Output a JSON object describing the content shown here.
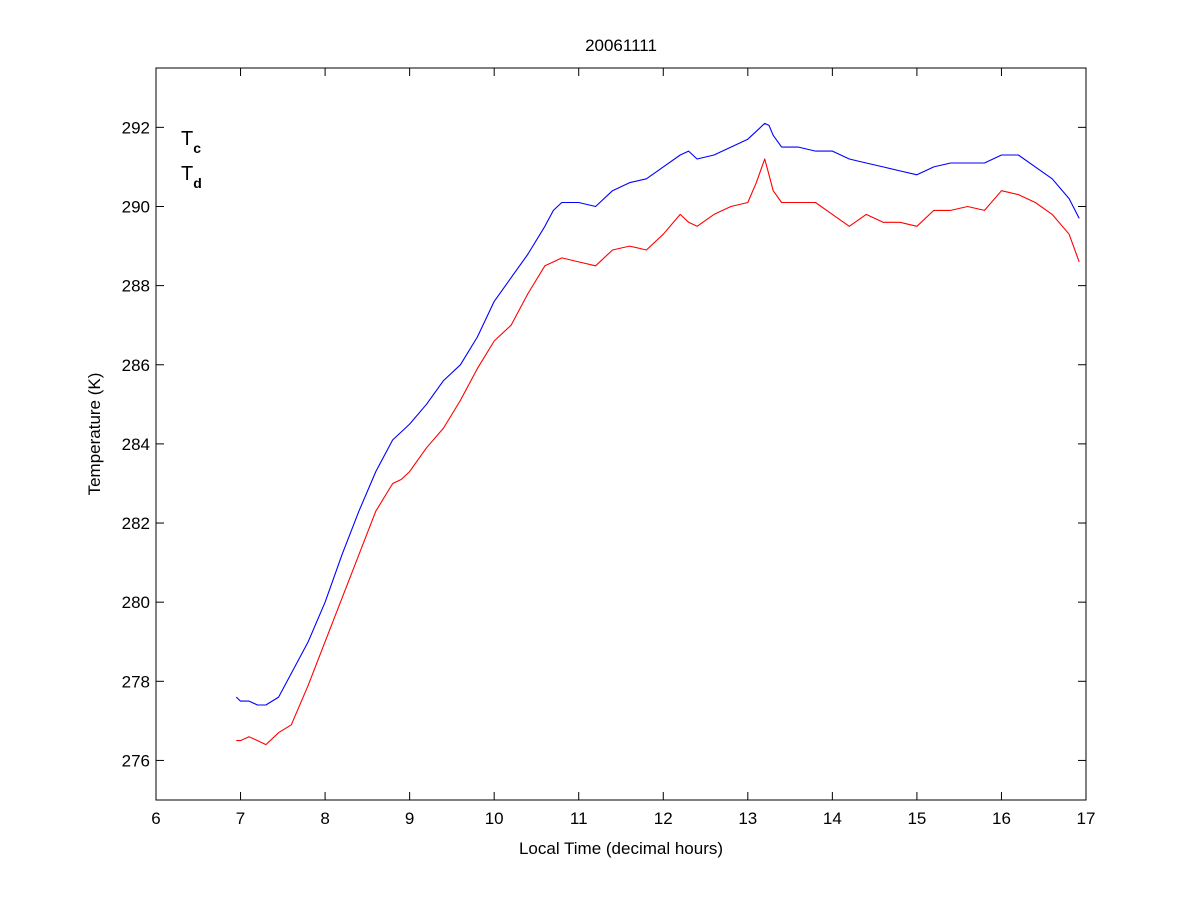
{
  "chart_data": {
    "type": "line",
    "title": "20061111",
    "xlabel": "Local Time (decimal hours)",
    "ylabel": "Temperature (K)",
    "xlim": [
      6,
      17
    ],
    "ylim": [
      275,
      293.5
    ],
    "xticks": [
      6,
      7,
      8,
      9,
      10,
      11,
      12,
      13,
      14,
      15,
      16,
      17
    ],
    "yticks": [
      276,
      278,
      280,
      282,
      284,
      286,
      288,
      290,
      292
    ],
    "grid": false,
    "legend_position": "top-left",
    "series": [
      {
        "name": "Tc",
        "name_main": "T",
        "name_sub": "c",
        "color": "#0000ff",
        "x": [
          6.95,
          7.0,
          7.1,
          7.2,
          7.3,
          7.45,
          7.6,
          7.8,
          8.0,
          8.2,
          8.4,
          8.6,
          8.8,
          8.9,
          9.0,
          9.2,
          9.4,
          9.6,
          9.8,
          10.0,
          10.2,
          10.4,
          10.6,
          10.7,
          10.8,
          11.0,
          11.2,
          11.4,
          11.6,
          11.8,
          12.0,
          12.2,
          12.3,
          12.4,
          12.6,
          12.8,
          13.0,
          13.1,
          13.2,
          13.25,
          13.3,
          13.4,
          13.6,
          13.8,
          14.0,
          14.2,
          14.4,
          14.6,
          14.8,
          15.0,
          15.2,
          15.4,
          15.6,
          15.8,
          16.0,
          16.2,
          16.4,
          16.6,
          16.8,
          16.92
        ],
        "y": [
          277.6,
          277.5,
          277.5,
          277.4,
          277.4,
          277.6,
          278.2,
          279.0,
          280.0,
          281.2,
          282.3,
          283.3,
          284.1,
          284.3,
          284.5,
          285.0,
          285.6,
          286.0,
          286.7,
          287.6,
          288.2,
          288.8,
          289.5,
          289.9,
          290.1,
          290.1,
          290.0,
          290.4,
          290.6,
          290.7,
          291.0,
          291.3,
          291.4,
          291.2,
          291.3,
          291.5,
          291.7,
          291.9,
          292.1,
          292.05,
          291.8,
          291.5,
          291.5,
          291.4,
          291.4,
          291.2,
          291.1,
          291.0,
          290.9,
          290.8,
          291.0,
          291.1,
          291.1,
          291.1,
          291.3,
          291.3,
          291.0,
          290.7,
          290.2,
          289.7
        ]
      },
      {
        "name": "Td",
        "name_main": "T",
        "name_sub": "d",
        "color": "#ff0000",
        "x": [
          6.95,
          7.0,
          7.1,
          7.2,
          7.3,
          7.45,
          7.6,
          7.8,
          8.0,
          8.2,
          8.4,
          8.6,
          8.8,
          8.9,
          9.0,
          9.2,
          9.4,
          9.6,
          9.8,
          10.0,
          10.2,
          10.4,
          10.6,
          10.7,
          10.8,
          11.0,
          11.2,
          11.4,
          11.6,
          11.8,
          12.0,
          12.2,
          12.3,
          12.4,
          12.6,
          12.8,
          13.0,
          13.1,
          13.2,
          13.25,
          13.3,
          13.4,
          13.6,
          13.8,
          14.0,
          14.2,
          14.4,
          14.6,
          14.8,
          15.0,
          15.2,
          15.4,
          15.6,
          15.8,
          16.0,
          16.2,
          16.4,
          16.6,
          16.8,
          16.92
        ],
        "y": [
          276.5,
          276.5,
          276.6,
          276.5,
          276.4,
          276.7,
          276.9,
          277.9,
          279.0,
          280.1,
          281.2,
          282.3,
          283.0,
          283.1,
          283.3,
          283.9,
          284.4,
          285.1,
          285.9,
          286.6,
          287.0,
          287.8,
          288.5,
          288.6,
          288.7,
          288.6,
          288.5,
          288.9,
          289.0,
          288.9,
          289.3,
          289.8,
          289.6,
          289.5,
          289.8,
          290.0,
          290.1,
          290.6,
          291.2,
          290.8,
          290.4,
          290.1,
          290.1,
          290.1,
          289.8,
          289.5,
          289.8,
          289.6,
          289.6,
          289.5,
          289.9,
          289.9,
          290.0,
          289.9,
          290.4,
          290.3,
          290.1,
          289.8,
          289.3,
          288.6
        ]
      }
    ]
  }
}
